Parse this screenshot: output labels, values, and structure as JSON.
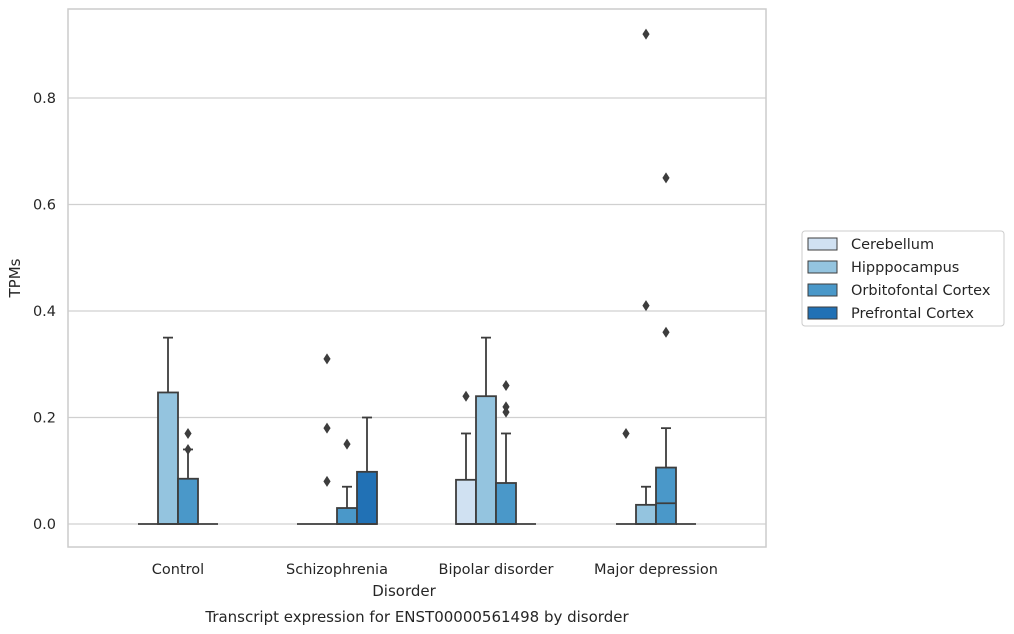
{
  "chart_data": {
    "type": "box",
    "title": "Transcript expression for ENST00000561498 by disorder",
    "xlabel": "Disorder",
    "ylabel": "TPMs",
    "ylim": [
      -0.045,
      0.97
    ],
    "yticks": [
      "0.0",
      "0.2",
      "0.4",
      "0.6",
      "0.8"
    ],
    "grid": true,
    "legend_position": "right",
    "categories": [
      "Control",
      "Schizophrenia",
      "Bipolar disorder",
      "Major depression"
    ],
    "series": [
      {
        "name": "Cerebellum",
        "color": "#d0e1f2",
        "boxes": [
          {
            "whisker_low": 0,
            "q1": 0,
            "median": 0,
            "q3": 0,
            "whisker_high": 0,
            "outliers": []
          },
          {
            "whisker_low": 0,
            "q1": 0,
            "median": 0,
            "q3": 0,
            "whisker_high": 0,
            "outliers": []
          },
          {
            "whisker_low": 0,
            "q1": 0,
            "median": 0,
            "q3": 0.083,
            "whisker_high": 0.17,
            "outliers": [
              0.24
            ]
          },
          {
            "whisker_low": 0,
            "q1": 0,
            "median": 0,
            "q3": 0,
            "whisker_high": 0,
            "outliers": [
              0.17
            ]
          }
        ]
      },
      {
        "name": "Hipppocampus",
        "color": "#94c4df",
        "boxes": [
          {
            "whisker_low": 0,
            "q1": 0,
            "median": 0,
            "q3": 0.247,
            "whisker_high": 0.35,
            "outliers": []
          },
          {
            "whisker_low": 0,
            "q1": 0,
            "median": 0,
            "q3": 0,
            "whisker_high": 0,
            "outliers": [
              0.08,
              0.18,
              0.31
            ]
          },
          {
            "whisker_low": 0,
            "q1": 0,
            "median": 0,
            "q3": 0.24,
            "whisker_high": 0.35,
            "outliers": []
          },
          {
            "whisker_low": 0,
            "q1": 0,
            "median": 0,
            "q3": 0.036,
            "whisker_high": 0.07,
            "outliers": [
              0.41,
              0.92
            ]
          }
        ]
      },
      {
        "name": "Orbitofontal Cortex",
        "color": "#4a98c9",
        "boxes": [
          {
            "whisker_low": 0,
            "q1": 0,
            "median": 0,
            "q3": 0.085,
            "whisker_high": 0.14,
            "outliers": [
              0.14,
              0.17
            ]
          },
          {
            "whisker_low": 0,
            "q1": 0,
            "median": 0,
            "q3": 0.03,
            "whisker_high": 0.07,
            "outliers": [
              0.15
            ]
          },
          {
            "whisker_low": 0,
            "q1": 0,
            "median": 0,
            "q3": 0.077,
            "whisker_high": 0.17,
            "outliers": [
              0.21,
              0.22,
              0.26
            ]
          },
          {
            "whisker_low": 0,
            "q1": 0,
            "median": 0.039,
            "q3": 0.106,
            "whisker_high": 0.18,
            "outliers": [
              0.36,
              0.65
            ]
          }
        ]
      },
      {
        "name": "Prefrontal Cortex",
        "color": "#2171b5",
        "boxes": [
          {
            "whisker_low": 0,
            "q1": 0,
            "median": 0,
            "q3": 0,
            "whisker_high": 0,
            "outliers": []
          },
          {
            "whisker_low": 0,
            "q1": 0,
            "median": 0,
            "q3": 0.098,
            "whisker_high": 0.2,
            "outliers": []
          },
          {
            "whisker_low": 0,
            "q1": 0,
            "median": 0,
            "q3": 0,
            "whisker_high": 0,
            "outliers": []
          },
          {
            "whisker_low": 0,
            "q1": 0,
            "median": 0,
            "q3": 0,
            "whisker_high": 0,
            "outliers": []
          }
        ]
      }
    ]
  }
}
